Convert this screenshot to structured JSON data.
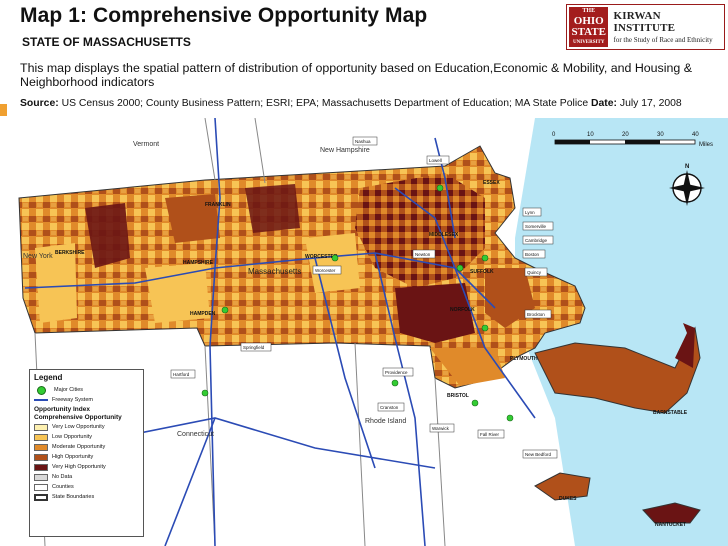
{
  "header": {
    "title": "Map 1: Comprehensive Opportunity Map",
    "subtitle": "STATE OF MASSACHUSETTS",
    "description": "This map displays the spatial pattern of distribution of opportunity based on Education,Economic & Mobility, and Housing & Neighborhood indicators",
    "source_label": "Source:",
    "source_text": " US Census 2000; County Business Pattern; ESRI; EPA; Massachusetts Department of Education; MA State Police",
    "date_label": " Date:",
    "date_text": " July 17, 2008"
  },
  "logo": {
    "seal_line1": "THE",
    "seal_line2": "OHIO",
    "seal_line3": "STATE",
    "seal_line4": "UNIVERSITY",
    "name": "KIRWAN INSTITUTE",
    "tagline": "for the Study of Race and Ethnicity"
  },
  "scale": {
    "ticks": [
      "0",
      "10",
      "20",
      "30",
      "40"
    ],
    "unit": "Miles"
  },
  "compass": {
    "north": "N"
  },
  "map_labels": {
    "vermont": "Vermont",
    "new_hampshire": "New Hampshire",
    "new_york": "New York",
    "massachusetts": "Massachusetts",
    "connecticut": "Connecticut",
    "rhode_island": "Rhode Island"
  },
  "counties": {
    "franklin": "FRANKLIN",
    "berkshire": "BERKSHIRE",
    "hampshire": "HAMPSHIRE",
    "hampden": "HAMPDEN",
    "worcester": "WORCESTER",
    "middlesex": "MIDDLESEX",
    "essex": "ESSEX",
    "suffolk": "SUFFOLK",
    "norfolk": "NORFOLK",
    "plymouth": "PLYMOUTH",
    "bristol": "BRISTOL",
    "barnstable": "BARNSTABLE",
    "dukes": "DUKES",
    "nantucket": "NANTUCKET"
  },
  "cities": {
    "nashua": "Nashua",
    "lowell": "Lowell",
    "lynn": "Lynn",
    "somerville": "Somerville",
    "cambridge": "Cambridge",
    "boston": "Boston",
    "newton": "Newton",
    "quincy": "Quincy",
    "brockton": "Brockton",
    "worcester": "Worcester",
    "springfield": "Springfield",
    "hartford": "Hartford",
    "providence": "Providence",
    "cranston": "Cranston",
    "warwick": "Warwick",
    "fall_river": "Fall River",
    "new_bedford": "New Bedford"
  },
  "legend": {
    "title": "Legend",
    "major_cities": "Major Cities",
    "freeway": "Freeway System",
    "index_title": "Opportunity Index",
    "index_sub": "Comprehensive Opportunity",
    "classes": [
      {
        "label": "Very Low Opportunity",
        "color": "#fdf0b0"
      },
      {
        "label": "Low Opportunity",
        "color": "#f7c455"
      },
      {
        "label": "Moderate Opportunity",
        "color": "#e08a2a"
      },
      {
        "label": "High Opportunity",
        "color": "#b0501a"
      },
      {
        "label": "Very High Opportunity",
        "color": "#6a1414"
      },
      {
        "label": "No Data",
        "color": "#d9d9d9"
      }
    ],
    "counties": "Counties",
    "state_boundaries": "State Boundaries"
  },
  "colors": {
    "very_low": "#fdf0b0",
    "low": "#f7c455",
    "moderate": "#e08a2a",
    "high": "#b0501a",
    "very_high": "#6a1414",
    "water": "#b8e6f5",
    "freeway": "#2b4bb5",
    "brand": "#a31d1d"
  }
}
